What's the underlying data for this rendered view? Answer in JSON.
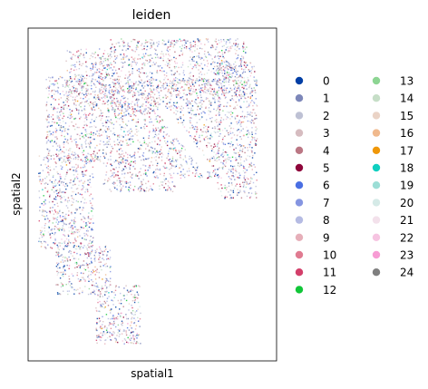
{
  "chart_data": {
    "type": "scatter",
    "title": "leiden",
    "xlabel": "spatial1",
    "ylabel": "spatial2",
    "grid": false,
    "legend_placement": "right",
    "legend_columns": 2,
    "xlim": [
      0,
      1
    ],
    "ylim": [
      0,
      1
    ],
    "x_ticks": [],
    "y_ticks": [],
    "categories": [
      "0",
      "1",
      "2",
      "3",
      "4",
      "5",
      "6",
      "7",
      "8",
      "9",
      "10",
      "11",
      "12",
      "13",
      "14",
      "15",
      "16",
      "17",
      "18",
      "19",
      "20",
      "21",
      "22",
      "23",
      "24"
    ],
    "colors": [
      "#023fa5",
      "#7d87b9",
      "#bec1d4",
      "#d6bcc0",
      "#bb7784",
      "#8e063b",
      "#4a6fe3",
      "#8595e1",
      "#b5bbe3",
      "#e6afb9",
      "#e07b91",
      "#d33f6a",
      "#11c638",
      "#8dd593",
      "#c6dec7",
      "#ead3c6",
      "#f0b98d",
      "#ef9708",
      "#0fcfc0",
      "#9cded6",
      "#d5eae7",
      "#f3e1eb",
      "#f6c4e1",
      "#f79cd4",
      "#7f7f7f"
    ],
    "tissue_regions": [
      [
        0.15,
        0.32,
        0.79,
        0.94
      ],
      [
        0.32,
        0.53,
        0.75,
        0.97
      ],
      [
        0.53,
        0.88,
        0.8,
        0.97
      ],
      [
        0.07,
        0.3,
        0.6,
        0.86
      ],
      [
        0.3,
        0.59,
        0.51,
        0.84
      ],
      [
        0.59,
        0.77,
        0.55,
        0.85
      ],
      [
        0.76,
        0.92,
        0.49,
        0.9
      ],
      [
        0.04,
        0.26,
        0.34,
        0.62
      ],
      [
        0.11,
        0.33,
        0.2,
        0.35
      ],
      [
        0.27,
        0.45,
        0.05,
        0.23
      ]
    ]
  }
}
